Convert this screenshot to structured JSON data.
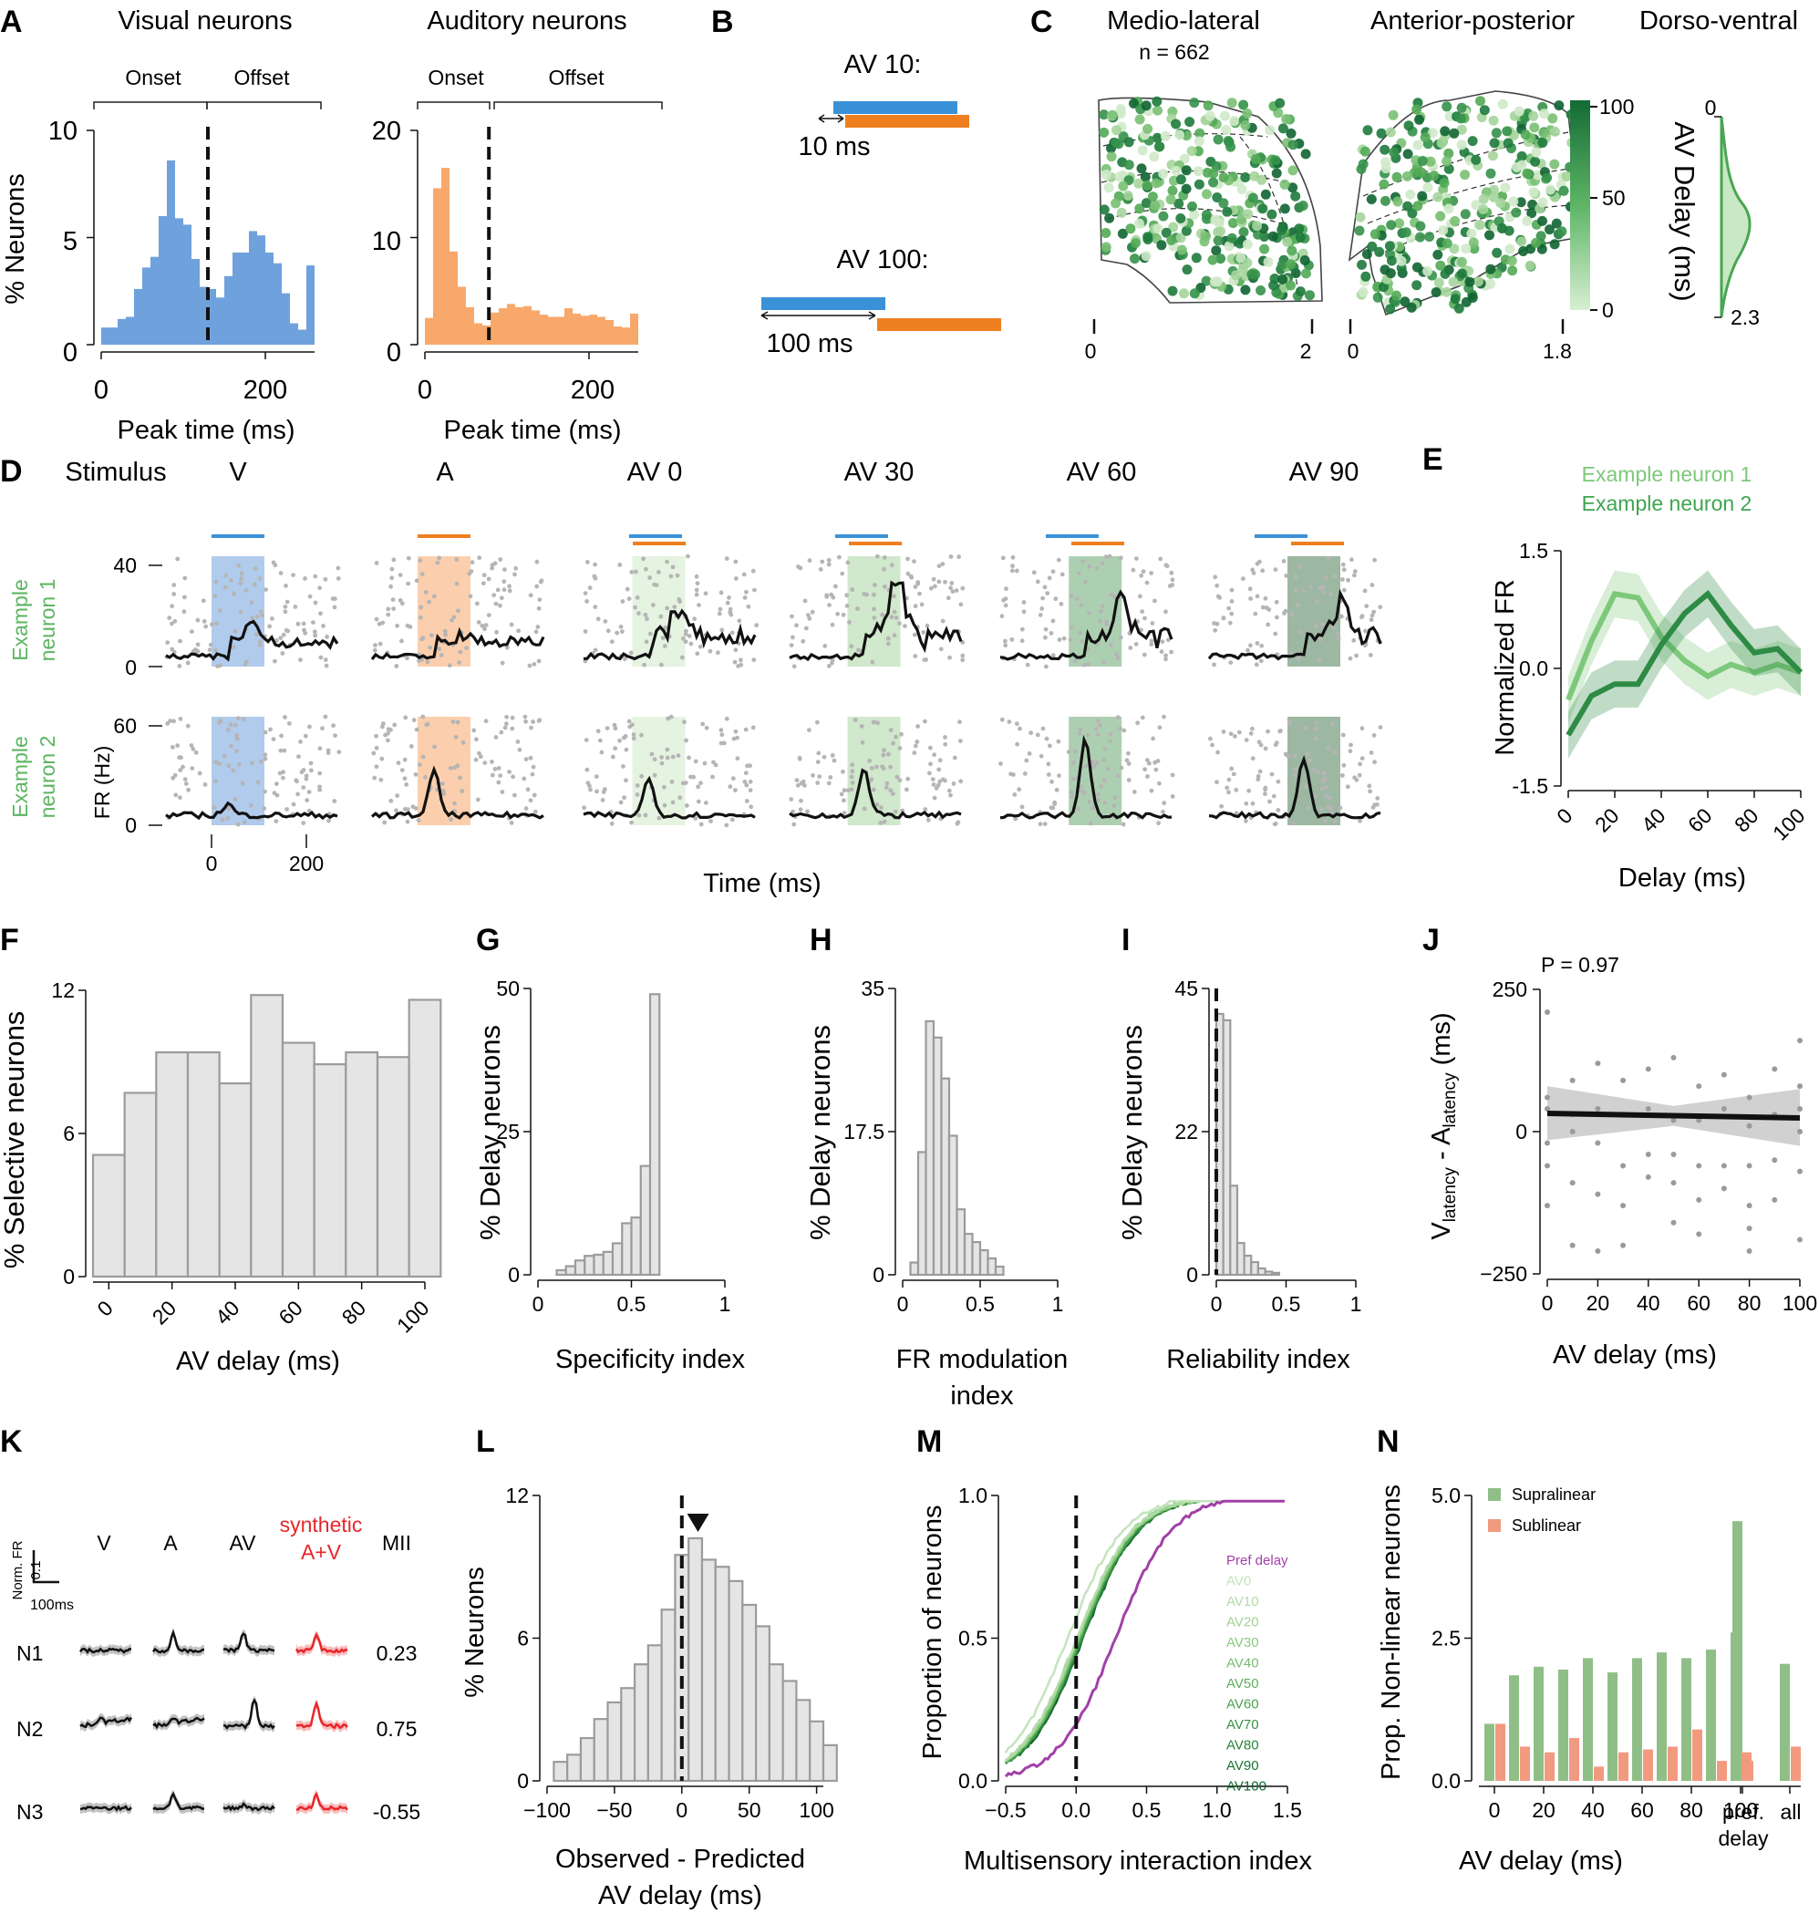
{
  "panels": {
    "A": "A",
    "B": "B",
    "C": "C",
    "D": "D",
    "E": "E",
    "F": "F",
    "G": "G",
    "H": "H",
    "I": "I",
    "J": "J",
    "K": "K",
    "L": "L",
    "M": "M",
    "N": "N"
  },
  "a": {
    "title_vis": "Visual neurons",
    "title_aud": "Auditory neurons",
    "onset": "Onset",
    "offset": "Offset",
    "xlabel": "Peak time (ms)",
    "ylabel": "% Neurons",
    "vis_yticks": [
      "0",
      "5",
      "10"
    ],
    "aud_yticks": [
      "0",
      "10",
      "20"
    ],
    "xticks": [
      "0",
      "200"
    ],
    "chart_data": [
      {
        "type": "bar",
        "title": "Visual neurons",
        "xlim": [
          0,
          260
        ],
        "ylim": [
          0,
          10
        ],
        "bin_width": 10,
        "divider_ms": 130,
        "color": "#6fa1dd",
        "values": [
          0.8,
          0.8,
          1.2,
          1.3,
          2.6,
          3.6,
          4.1,
          6.0,
          8.6,
          5.9,
          5.6,
          4.0,
          2.7,
          2.6,
          2.2,
          3.2,
          4.3,
          4.3,
          5.3,
          5.1,
          4.3,
          3.8,
          2.4,
          1.0,
          0.7,
          3.7
        ]
      },
      {
        "type": "bar",
        "title": "Auditory neurons",
        "xlim": [
          0,
          260
        ],
        "ylim": [
          0,
          20
        ],
        "bin_width": 10,
        "divider_ms": 78,
        "color": "#f7a86a",
        "values": [
          2.5,
          14.6,
          16.5,
          8.7,
          5.4,
          3.5,
          2.0,
          1.8,
          3.0,
          3.4,
          3.8,
          3.5,
          3.6,
          3.2,
          2.8,
          2.6,
          2.6,
          3.4,
          2.9,
          2.7,
          2.8,
          2.6,
          2.3,
          1.7,
          1.6,
          2.9
        ]
      }
    ]
  },
  "b": {
    "av10": "AV 10:",
    "av10_gap": "10 ms",
    "av100": "AV 100:",
    "av100_gap": "100 ms",
    "vis_color": "#3b91d8",
    "aud_color": "#ee7f1f"
  },
  "c": {
    "ml": "Medio-lateral",
    "ap": "Anterior-posterior",
    "dv": "Dorso-ventral",
    "n": "n = 662",
    "ml_ticks": [
      "0",
      "2"
    ],
    "ap_ticks": [
      "0",
      "1.8"
    ],
    "cbar_ticks": [
      "100",
      "50",
      "0"
    ],
    "cbar_label": "AV Delay (ms)",
    "dv_ticks": [
      "0",
      "2.3"
    ]
  },
  "d": {
    "stimulus": "Stimulus",
    "conds": [
      {
        "label": "V",
        "color": "#5b95cf"
      },
      {
        "label": "A",
        "color": "#e98a33"
      },
      {
        "label": "AV 0",
        "color": "#b9dfb4"
      },
      {
        "label": "AV 30",
        "color": "#7dc478"
      },
      {
        "label": "AV 60",
        "color": "#46a653"
      },
      {
        "label": "AV 90",
        "color": "#27784a"
      }
    ],
    "neuron1": "Example\nneuron 1",
    "neuron2": "Example\nneuron 2",
    "fr_label": "FR (Hz)",
    "n1_yticks": [
      "0",
      "40"
    ],
    "n2_yticks": [
      "0",
      "60"
    ],
    "xticks": [
      "0",
      "200"
    ],
    "xlabel": "Time (ms)"
  },
  "e": {
    "legend1": "Example neuron 1",
    "legend2": "Example neuron 2",
    "ylabel": "Normalized FR",
    "xlabel": "Delay (ms)",
    "yticks": [
      "-1.5",
      "0.0",
      "1.5"
    ],
    "xticks": [
      "0",
      "20",
      "40",
      "60",
      "80",
      "100"
    ],
    "chart_data": {
      "type": "line",
      "x": [
        0,
        10,
        20,
        30,
        40,
        50,
        60,
        70,
        80,
        90,
        100
      ],
      "ylim": [
        -1.5,
        1.5
      ],
      "series": [
        {
          "name": "Example neuron 1",
          "color": "#7dc87a",
          "values": [
            -0.4,
            0.35,
            0.95,
            0.9,
            0.4,
            0.1,
            -0.1,
            0.05,
            -0.05,
            0.05,
            -0.05
          ]
        },
        {
          "name": "Example neuron 2",
          "color": "#2e8b45",
          "values": [
            -0.85,
            -0.35,
            -0.2,
            -0.2,
            0.3,
            0.7,
            0.95,
            0.55,
            0.2,
            0.25,
            -0.05
          ]
        }
      ]
    }
  },
  "f": {
    "ylabel": "% Selective neurons",
    "xlabel": "AV delay (ms)",
    "yticks": [
      "0",
      "6",
      "12"
    ],
    "xticks": [
      "0",
      "20",
      "40",
      "60",
      "80",
      "100"
    ],
    "chart_data": {
      "type": "bar",
      "x": [
        0,
        10,
        20,
        30,
        40,
        50,
        60,
        70,
        80,
        90,
        100
      ],
      "values": [
        5.1,
        7.7,
        9.4,
        9.4,
        8.1,
        11.8,
        9.8,
        8.9,
        9.4,
        9.2,
        11.6
      ],
      "ylim": [
        0,
        12
      ]
    }
  },
  "g": {
    "ylabel": "% Delay neurons",
    "xlabel": "Specificity index",
    "yticks": [
      "0",
      "25",
      "50"
    ],
    "xticks": [
      "0",
      "0.5",
      "1"
    ],
    "chart_data": {
      "type": "bar",
      "bin_width": 0.05,
      "start": 0.1,
      "values": [
        0.8,
        1.5,
        2.5,
        3.3,
        3.5,
        4.0,
        5.5,
        9.0,
        10.0,
        19.0,
        49.0
      ],
      "ylim": [
        0,
        50
      ]
    }
  },
  "h": {
    "ylabel": "% Delay neurons",
    "xlabel": "FR modulation\nindex",
    "yticks": [
      "0",
      "17.5",
      "35"
    ],
    "xticks": [
      "0",
      "0.5",
      "1"
    ],
    "chart_data": {
      "type": "bar",
      "bin_width": 0.05,
      "start": 0.05,
      "values": [
        1.5,
        15,
        31,
        29,
        24,
        17,
        8,
        5,
        4,
        3,
        2,
        1
      ],
      "ylim": [
        0,
        35
      ]
    }
  },
  "i": {
    "ylabel": "% Delay neurons",
    "xlabel": "Reliability index",
    "yticks": [
      "0",
      "22",
      "45"
    ],
    "xticks": [
      "0",
      "0.5",
      "1"
    ],
    "chart_data": {
      "type": "bar",
      "bin_width": 0.05,
      "start": 0.0,
      "values": [
        41,
        40,
        14,
        5,
        3,
        2,
        1,
        0.5,
        0.3
      ],
      "ylim": [
        0,
        45
      ]
    }
  },
  "j": {
    "p": "P = 0.97",
    "ylabel": "V",
    "ylabel_sub1": "latency",
    "ylabel_mid": " - A",
    "ylabel_sub2": "latency",
    "ylabel_unit": " (ms)",
    "xlabel": "AV delay (ms)",
    "yticks": [
      "-250",
      "0",
      "250"
    ],
    "xticks": [
      "0",
      "20",
      "40",
      "60",
      "80",
      "100"
    ],
    "chart_data": {
      "type": "scatter",
      "xlim": [
        0,
        100
      ],
      "ylim": [
        -250,
        250
      ],
      "fit": {
        "x": [
          0,
          100
        ],
        "y": [
          32,
          24
        ]
      },
      "x": [
        0,
        0,
        0,
        0,
        0,
        0,
        10,
        10,
        10,
        10,
        10,
        20,
        20,
        20,
        20,
        20,
        30,
        30,
        30,
        30,
        30,
        40,
        40,
        40,
        40,
        50,
        50,
        50,
        50,
        50,
        60,
        60,
        60,
        60,
        60,
        70,
        70,
        70,
        70,
        80,
        80,
        80,
        80,
        80,
        80,
        90,
        90,
        90,
        90,
        100,
        100,
        100,
        100,
        100,
        100
      ],
      "y": [
        210,
        60,
        40,
        -20,
        -60,
        -130,
        90,
        30,
        0,
        -90,
        -200,
        120,
        40,
        -20,
        -110,
        -210,
        90,
        30,
        -60,
        -130,
        -200,
        110,
        40,
        -40,
        -80,
        130,
        20,
        -40,
        -90,
        -160,
        80,
        20,
        -60,
        -120,
        -180,
        100,
        40,
        -60,
        -100,
        60,
        10,
        -60,
        -130,
        -170,
        -210,
        110,
        30,
        -50,
        -120,
        160,
        80,
        40,
        0,
        -70,
        -190
      ]
    }
  },
  "k": {
    "labels": [
      "V",
      "A",
      "AV"
    ],
    "synthetic": "synthetic\nA+V",
    "mii": "MII",
    "scale_y": "Norm. FR",
    "scale_y_val": "0.1",
    "scale_x": "100ms",
    "rows": [
      {
        "name": "N1",
        "mii": "0.23"
      },
      {
        "name": "N2",
        "mii": "0.75"
      },
      {
        "name": "N3",
        "mii": "-0.55"
      }
    ]
  },
  "l": {
    "ylabel": "% Neurons",
    "xlabel": "Observed - Predicted\nAV delay (ms)",
    "yticks": [
      "0",
      "6",
      "12"
    ],
    "xticks": [
      "−100",
      "−50",
      "0",
      "50",
      "100"
    ],
    "chart_data": {
      "type": "bar",
      "bin_width": 10,
      "start": -95,
      "values": [
        0.8,
        1.1,
        1.8,
        2.6,
        3.3,
        3.9,
        4.9,
        5.7,
        7.2,
        9.5,
        10.2,
        9.3,
        9.0,
        8.4,
        7.4,
        6.5,
        4.9,
        4.2,
        3.4,
        2.5,
        1.5
      ],
      "ylim": [
        0,
        12
      ],
      "median_marker": 12
    }
  },
  "m": {
    "ylabel": "Proportion of neurons",
    "xlabel": "Multisensory interaction index",
    "yticks": [
      "0.0",
      "0.5",
      "1.0"
    ],
    "xticks": [
      "−0.5",
      "0.0",
      "0.5",
      "1.0",
      "1.5"
    ],
    "legend": [
      "Pref delay",
      "AV0",
      "AV10",
      "AV20",
      "AV30",
      "AV40",
      "AV50",
      "AV60",
      "AV70",
      "AV80",
      "AV90",
      "AV100"
    ],
    "legend_colors": [
      "#a240a8",
      "#c3e4bc",
      "#b2dca8",
      "#9fd394",
      "#8bc980",
      "#76bd6d",
      "#60b05c",
      "#4aa24e",
      "#389342",
      "#288438",
      "#1a7530",
      "#0e6628"
    ]
  },
  "n": {
    "ylabel": "Prop. Non-linear neurons",
    "xlabel": "AV delay (ms)",
    "yticks": [
      "0.0",
      "2.5",
      "5.0"
    ],
    "xticks": [
      "0",
      "20",
      "40",
      "60",
      "80",
      "100"
    ],
    "pref": "pref.\ndelay",
    "all": "all",
    "legend_supra": "Supralinear",
    "legend_sub": "Sublinear",
    "chart_data": {
      "type": "bar",
      "categories": [
        "0",
        "10",
        "20",
        "30",
        "40",
        "50",
        "60",
        "70",
        "80",
        "90",
        "100",
        "pref. delay",
        "all"
      ],
      "ylim": [
        0,
        5
      ],
      "series": [
        {
          "name": "Supralinear",
          "color": "#8fbf87",
          "values": [
            1.0,
            1.85,
            2.0,
            1.95,
            2.15,
            1.9,
            2.15,
            2.25,
            2.15,
            2.3,
            2.6,
            4.55,
            2.05
          ]
        },
        {
          "name": "Sublinear",
          "color": "#f29a80",
          "values": [
            1.0,
            0.6,
            0.5,
            0.75,
            0.25,
            0.5,
            0.55,
            0.6,
            0.9,
            0.35,
            0.5,
            0.35,
            0.6
          ]
        }
      ]
    }
  }
}
